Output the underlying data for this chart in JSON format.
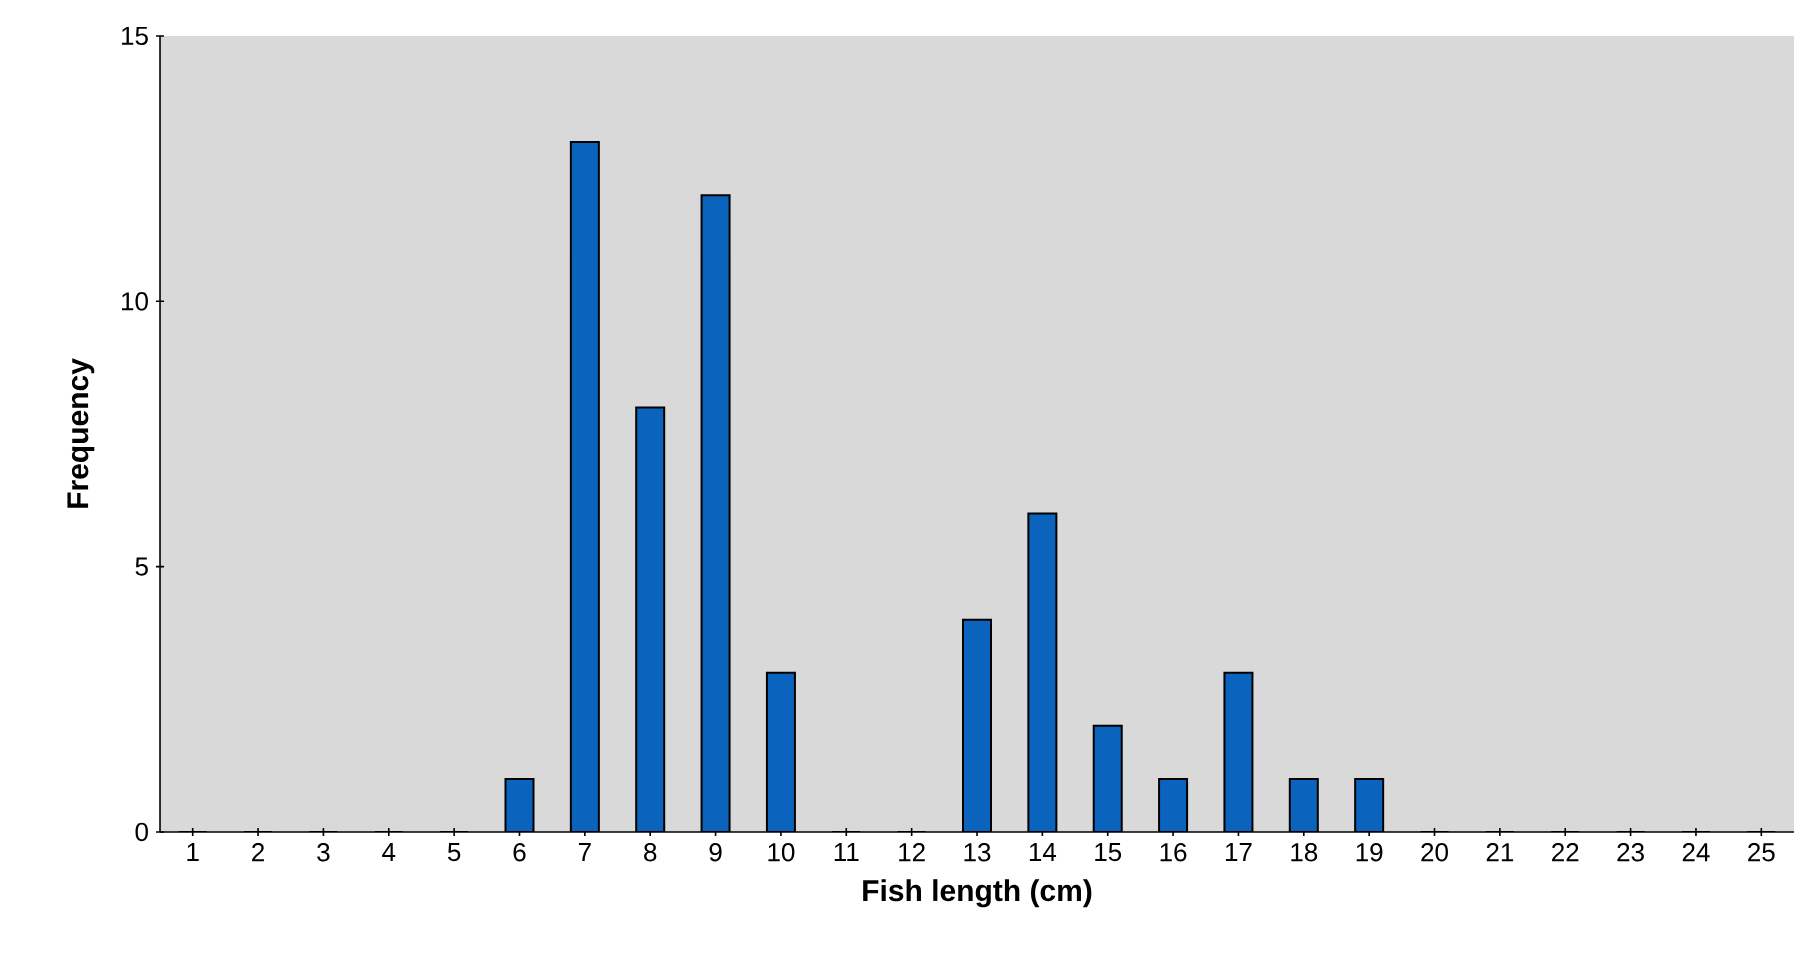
{
  "chart_data": {
    "type": "bar",
    "xlabel": "Fish length (cm)",
    "ylabel": "Frequency",
    "categories": [
      "1",
      "2",
      "3",
      "4",
      "5",
      "6",
      "7",
      "8",
      "9",
      "10",
      "11",
      "12",
      "13",
      "14",
      "15",
      "16",
      "17",
      "18",
      "19",
      "20",
      "21",
      "22",
      "23",
      "24",
      "25"
    ],
    "values": [
      0,
      0,
      0,
      0,
      0,
      1,
      13,
      8,
      12,
      3,
      0,
      0,
      4,
      6,
      2,
      1,
      3,
      1,
      1,
      0,
      0,
      0,
      0,
      0,
      0
    ],
    "color": "#0a64be",
    "ylim": [
      0,
      15
    ],
    "yticks": [
      0,
      5,
      10,
      15
    ],
    "grid": false
  }
}
